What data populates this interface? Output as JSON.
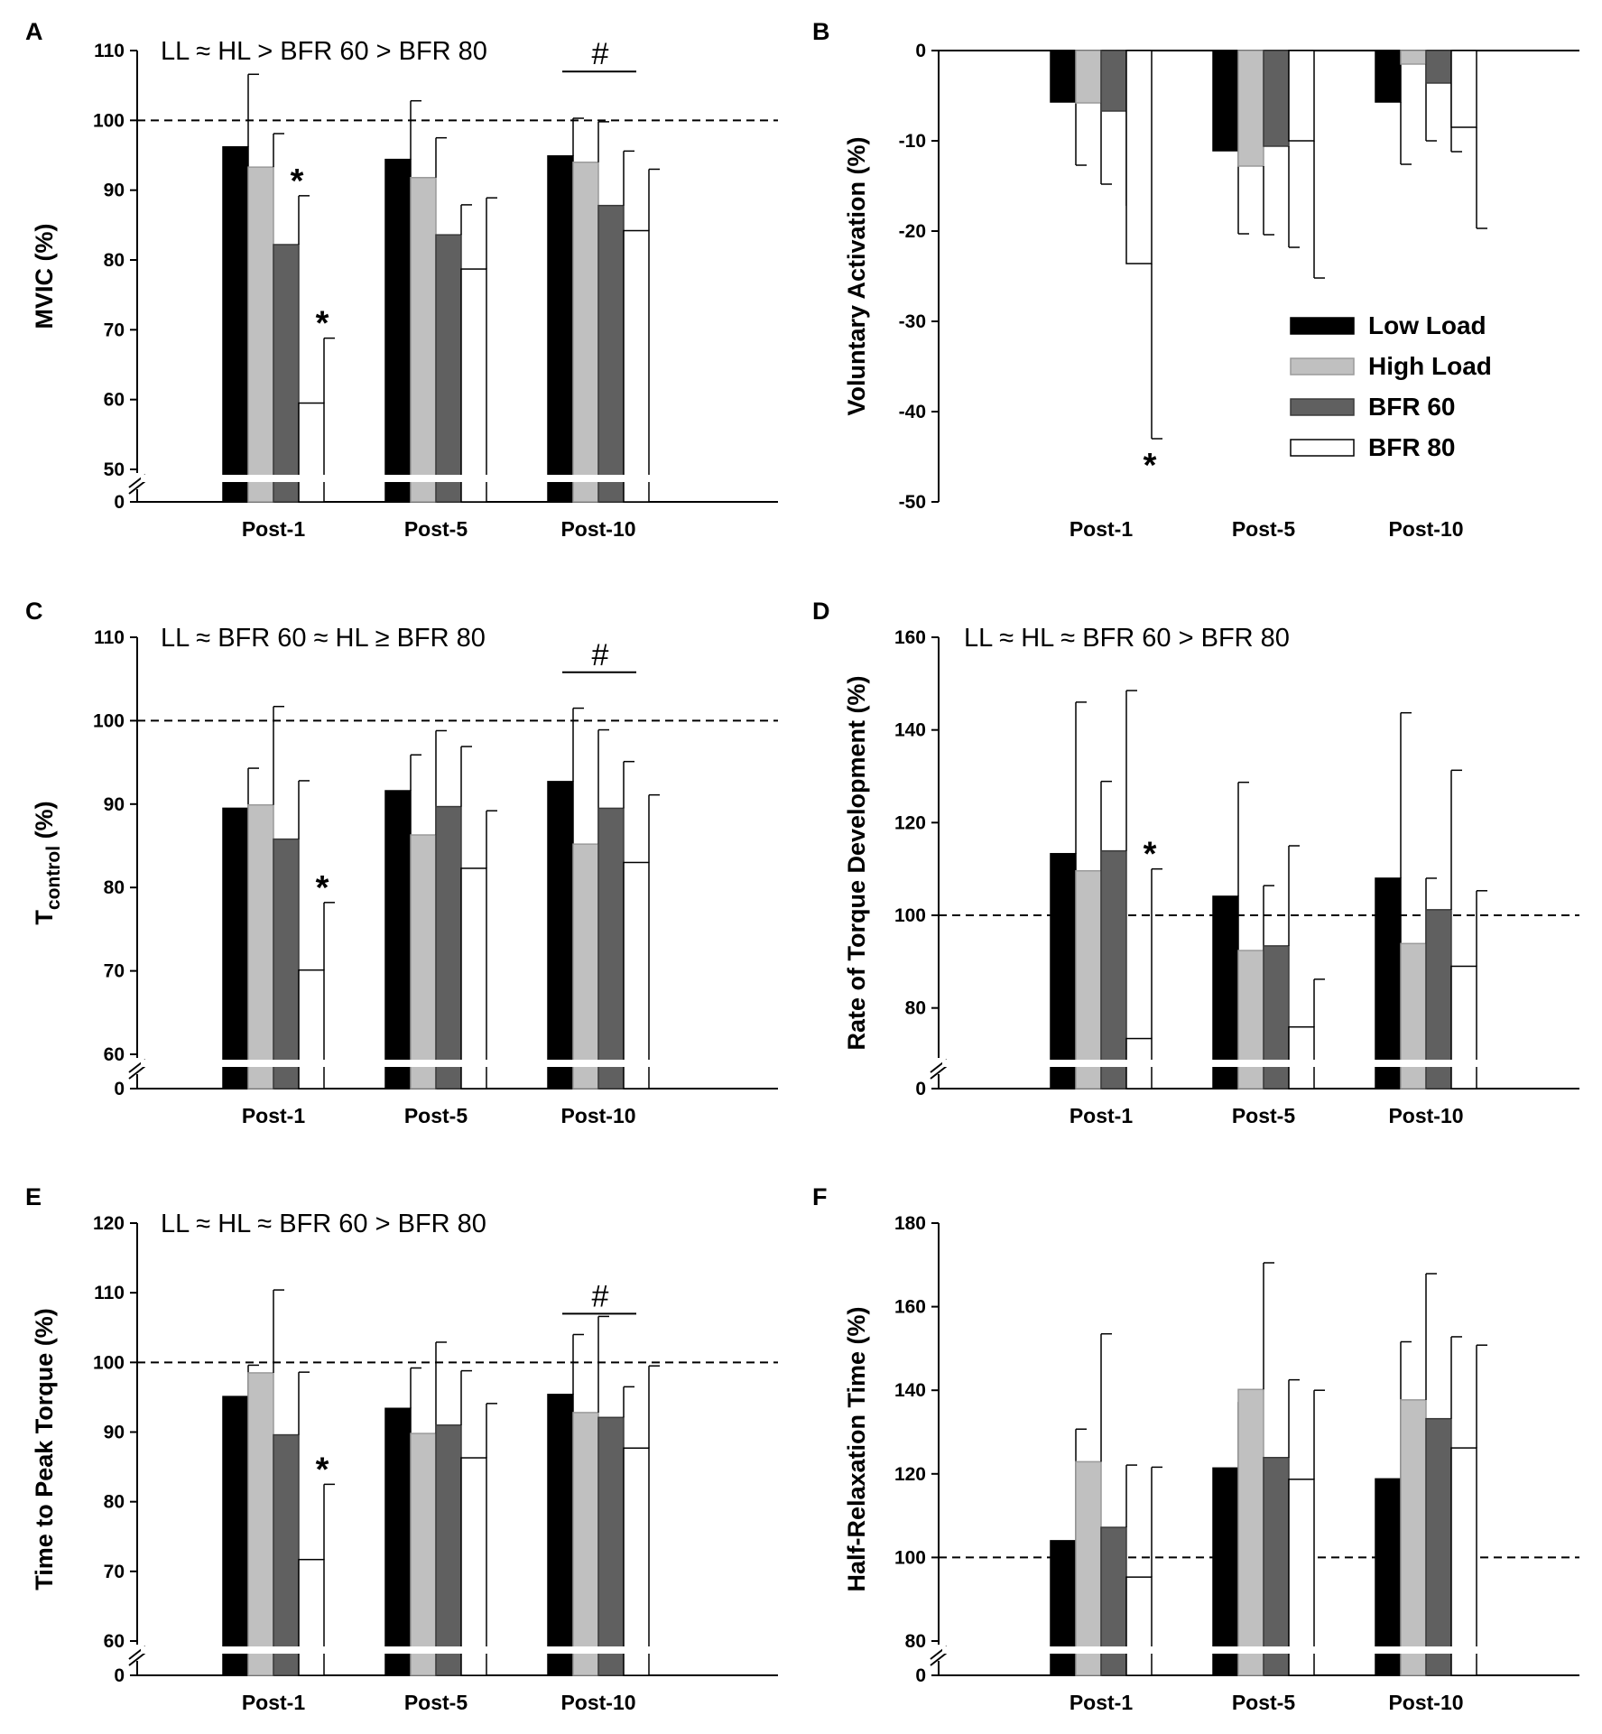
{
  "legend": {
    "entries": [
      {
        "name": "Low Load",
        "color": "#000000"
      },
      {
        "name": "High Load",
        "color": "#c0c0c0"
      },
      {
        "name": "BFR 60",
        "color": "#606060"
      },
      {
        "name": "BFR 80",
        "color": "#ffffff"
      }
    ]
  },
  "chart_data": [
    {
      "panel": "A",
      "type": "bar",
      "title": "LL ≈ HL > BFR 60 > BFR 80",
      "ylabel": "MVIC (%)",
      "ylabel_sub": "",
      "ylabel_post": "",
      "categories": [
        "Post-1",
        "Post-5",
        "Post-10"
      ],
      "ylim": [
        50,
        110
      ],
      "yticks": [
        50,
        60,
        70,
        80,
        90,
        100,
        110
      ],
      "axis_break": true,
      "break_label": "0",
      "reference_line": 100,
      "series": [
        {
          "name": "Low Load",
          "values": [
            96.2,
            94.4,
            94.9
          ],
          "errors": [
            10.4,
            8.4,
            5.4
          ]
        },
        {
          "name": "High Load",
          "values": [
            93.3,
            91.8,
            94.0
          ],
          "errors": [
            4.8,
            5.7,
            5.8
          ]
        },
        {
          "name": "BFR 60",
          "values": [
            82.2,
            83.6,
            87.8
          ],
          "errors": [
            7.0,
            4.3,
            7.8
          ]
        },
        {
          "name": "BFR 80",
          "values": [
            59.5,
            78.7,
            84.2
          ],
          "errors": [
            9.3,
            10.2,
            8.8
          ]
        }
      ],
      "stars": [
        {
          "category": 0,
          "series": 2,
          "label": "*"
        },
        {
          "category": 0,
          "series": 3,
          "label": "*"
        }
      ],
      "hash": {
        "category": 2,
        "label": "#",
        "value": 107
      }
    },
    {
      "panel": "B",
      "type": "bar",
      "title": "",
      "ylabel": "Voluntary Activation (%)",
      "ylabel_sub": "",
      "ylabel_post": "",
      "categories": [
        "Post-1",
        "Post-5",
        "Post-10"
      ],
      "ylim": [
        -50,
        0
      ],
      "yticks": [
        -50,
        -40,
        -30,
        -20,
        -10,
        0
      ],
      "axis_break": false,
      "series": [
        {
          "name": "Low Load",
          "values": [
            -5.7,
            -11.1,
            -5.7
          ],
          "errors": [
            7.0,
            9.2,
            6.9
          ]
        },
        {
          "name": "High Load",
          "values": [
            -5.8,
            -12.8,
            -1.5
          ],
          "errors": [
            9.0,
            7.6,
            8.5
          ]
        },
        {
          "name": "BFR 60",
          "values": [
            -6.7,
            -10.6,
            -3.6
          ],
          "errors": [
            10.5,
            11.2,
            7.6
          ]
        },
        {
          "name": "BFR 80",
          "values": [
            -23.6,
            -10.0,
            -8.5
          ],
          "errors": [
            19.4,
            15.2,
            11.2
          ]
        }
      ],
      "stars": [
        {
          "category": 0,
          "series": 3,
          "label": "*"
        }
      ]
    },
    {
      "panel": "C",
      "type": "bar",
      "title": "LL ≈ BFR 60 ≈ HL ≥ BFR 80",
      "ylabel": "T",
      "ylabel_sub": "control",
      "ylabel_post": " (%)",
      "categories": [
        "Post-1",
        "Post-5",
        "Post-10"
      ],
      "ylim": [
        60,
        110
      ],
      "yticks": [
        60,
        70,
        80,
        90,
        100,
        110
      ],
      "axis_break": true,
      "break_label": "0",
      "reference_line": 100,
      "series": [
        {
          "name": "Low Load",
          "values": [
            89.5,
            91.6,
            92.7
          ],
          "errors": [
            4.8,
            4.3,
            8.8
          ]
        },
        {
          "name": "High Load",
          "values": [
            89.9,
            86.3,
            85.2
          ],
          "errors": [
            11.8,
            12.5,
            13.7
          ]
        },
        {
          "name": "BFR 60",
          "values": [
            85.8,
            89.7,
            89.5
          ],
          "errors": [
            7.0,
            7.2,
            5.6
          ]
        },
        {
          "name": "BFR 80",
          "values": [
            70.1,
            82.3,
            83.0
          ],
          "errors": [
            8.1,
            6.9,
            8.1
          ]
        }
      ],
      "stars": [
        {
          "category": 0,
          "series": 3,
          "label": "*"
        }
      ],
      "hash": {
        "category": 2,
        "label": "#",
        "value": 105.8
      }
    },
    {
      "panel": "D",
      "type": "bar",
      "title": "LL ≈ HL ≈ BFR 60 > BFR 80",
      "ylabel": "Rate of Torque Development (%)",
      "ylabel_sub": "",
      "ylabel_post": "",
      "categories": [
        "Post-1",
        "Post-5",
        "Post-10"
      ],
      "ylim": [
        70,
        160
      ],
      "yticks": [
        80,
        100,
        120,
        140,
        160
      ],
      "axis_break": true,
      "break_label": "0",
      "reference_line": 100,
      "series": [
        {
          "name": "Low Load",
          "values": [
            113.3,
            104.1,
            108.0
          ],
          "errors": [
            32.7,
            24.6,
            35.7
          ]
        },
        {
          "name": "High Load",
          "values": [
            109.6,
            92.4,
            93.9
          ],
          "errors": [
            19.3,
            14.0,
            14.1
          ]
        },
        {
          "name": "BFR 60",
          "values": [
            113.9,
            93.4,
            101.2
          ],
          "errors": [
            34.6,
            21.6,
            30.1
          ]
        },
        {
          "name": "BFR 80",
          "values": [
            73.4,
            75.9,
            89.0
          ],
          "errors": [
            36.6,
            10.3,
            16.3
          ]
        }
      ],
      "stars": [
        {
          "category": 0,
          "series": 3,
          "label": "*"
        }
      ]
    },
    {
      "panel": "E",
      "type": "bar",
      "title": "LL ≈ HL ≈ BFR 60 > BFR 80",
      "ylabel": "Time to Peak Torque (%)",
      "ylabel_sub": "",
      "ylabel_post": "",
      "categories": [
        "Post-1",
        "Post-5",
        "Post-10"
      ],
      "ylim": [
        60,
        120
      ],
      "yticks": [
        60,
        70,
        80,
        90,
        100,
        110,
        120
      ],
      "axis_break": true,
      "break_label": "0",
      "reference_line": 100,
      "series": [
        {
          "name": "Low Load",
          "values": [
            95.1,
            93.4,
            95.4
          ],
          "errors": [
            4.5,
            5.8,
            8.6
          ]
        },
        {
          "name": "High Load",
          "values": [
            98.5,
            89.8,
            92.8
          ],
          "errors": [
            11.9,
            13.1,
            13.8
          ]
        },
        {
          "name": "BFR 60",
          "values": [
            89.6,
            91.0,
            92.1
          ],
          "errors": [
            9.0,
            7.8,
            4.4
          ]
        },
        {
          "name": "BFR 80",
          "values": [
            71.7,
            86.3,
            87.7
          ],
          "errors": [
            10.8,
            7.8,
            11.8
          ]
        }
      ],
      "stars": [
        {
          "category": 0,
          "series": 3,
          "label": "*"
        }
      ],
      "hash": {
        "category": 2,
        "label": "#",
        "value": 107
      }
    },
    {
      "panel": "F",
      "type": "bar",
      "title": "",
      "ylabel": "Half-Relaxation Time (%)",
      "ylabel_sub": "",
      "ylabel_post": "",
      "categories": [
        "Post-1",
        "Post-5",
        "Post-10"
      ],
      "ylim": [
        80,
        180
      ],
      "yticks": [
        80,
        100,
        120,
        140,
        160,
        180
      ],
      "axis_break": true,
      "break_label": "0",
      "reference_line": 100,
      "series": [
        {
          "name": "Low Load",
          "values": [
            104.0,
            121.4,
            118.8
          ],
          "errors": [
            26.7,
            15.8,
            32.8
          ]
        },
        {
          "name": "High Load",
          "values": [
            122.9,
            140.2,
            137.7
          ],
          "errors": [
            30.6,
            30.3,
            30.2
          ]
        },
        {
          "name": "BFR 60",
          "values": [
            107.2,
            123.9,
            133.2
          ],
          "errors": [
            14.9,
            18.6,
            19.6
          ]
        },
        {
          "name": "BFR 80",
          "values": [
            95.3,
            118.7,
            126.2
          ],
          "errors": [
            26.3,
            21.3,
            24.6
          ]
        }
      ],
      "stars": []
    }
  ]
}
